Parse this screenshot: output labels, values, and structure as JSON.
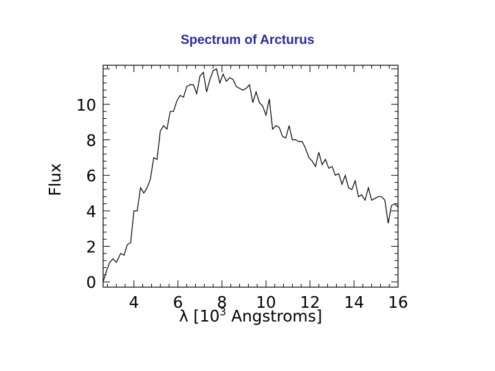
{
  "chart_data": {
    "type": "line",
    "title": "Spectrum of Arcturus",
    "xlabel": "λ [10³ Angstroms]",
    "ylabel": "Flux",
    "xlim": [
      2.6,
      16.0
    ],
    "ylim": [
      -0.3,
      12.2
    ],
    "x_ticks": [
      4,
      6,
      8,
      10,
      12,
      14,
      16
    ],
    "y_ticks": [
      0,
      2,
      4,
      6,
      8,
      10
    ],
    "grid": false,
    "series": [
      {
        "x": [
          2.6,
          2.75,
          2.9,
          3.05,
          3.2,
          3.4,
          3.55,
          3.7,
          3.85,
          4.0,
          4.15,
          4.3,
          4.45,
          4.6,
          4.75,
          4.9,
          5.05,
          5.2,
          5.35,
          5.5,
          5.65,
          5.8,
          5.95,
          6.1,
          6.25,
          6.4,
          6.55,
          6.7,
          6.85,
          7.0,
          7.15,
          7.3,
          7.45,
          7.6,
          7.75,
          7.9,
          8.05,
          8.2,
          8.35,
          8.5,
          8.65,
          8.8,
          8.95,
          9.1,
          9.25,
          9.4,
          9.55,
          9.7,
          9.85,
          10.0,
          10.15,
          10.3,
          10.45,
          10.6,
          10.75,
          10.9,
          11.05,
          11.2,
          11.35,
          11.5,
          11.65,
          11.8,
          11.95,
          12.1,
          12.25,
          12.4,
          12.55,
          12.7,
          12.85,
          13.0,
          13.15,
          13.3,
          13.45,
          13.6,
          13.75,
          13.9,
          14.05,
          14.2,
          14.35,
          14.5,
          14.65,
          14.8,
          14.95,
          15.1,
          15.25,
          15.4,
          15.55,
          15.7,
          15.85,
          16.0
        ],
        "y": [
          0.0,
          0.6,
          1.1,
          1.3,
          1.1,
          1.6,
          1.5,
          2.1,
          2.2,
          4.0,
          4.0,
          5.3,
          5.0,
          5.3,
          5.8,
          7.0,
          6.9,
          8.5,
          8.8,
          8.6,
          9.6,
          9.6,
          10.2,
          10.5,
          10.4,
          11.0,
          11.1,
          11.1,
          10.6,
          11.6,
          11.8,
          10.7,
          11.4,
          11.9,
          12.0,
          11.2,
          11.7,
          11.3,
          11.5,
          11.4,
          11.0,
          10.9,
          10.8,
          10.9,
          11.1,
          10.1,
          10.7,
          10.1,
          9.9,
          9.4,
          10.3,
          8.6,
          8.8,
          8.7,
          8.2,
          8.1,
          8.8,
          8.0,
          8.0,
          7.9,
          7.9,
          7.5,
          7.0,
          6.8,
          6.5,
          7.3,
          6.6,
          6.9,
          6.4,
          6.5,
          6.0,
          6.1,
          5.5,
          6.0,
          5.3,
          5.2,
          5.7,
          4.8,
          4.9,
          4.6,
          5.3,
          4.6,
          4.7,
          4.8,
          4.8,
          4.6,
          3.3,
          4.3,
          4.4,
          4.2
        ]
      }
    ]
  }
}
